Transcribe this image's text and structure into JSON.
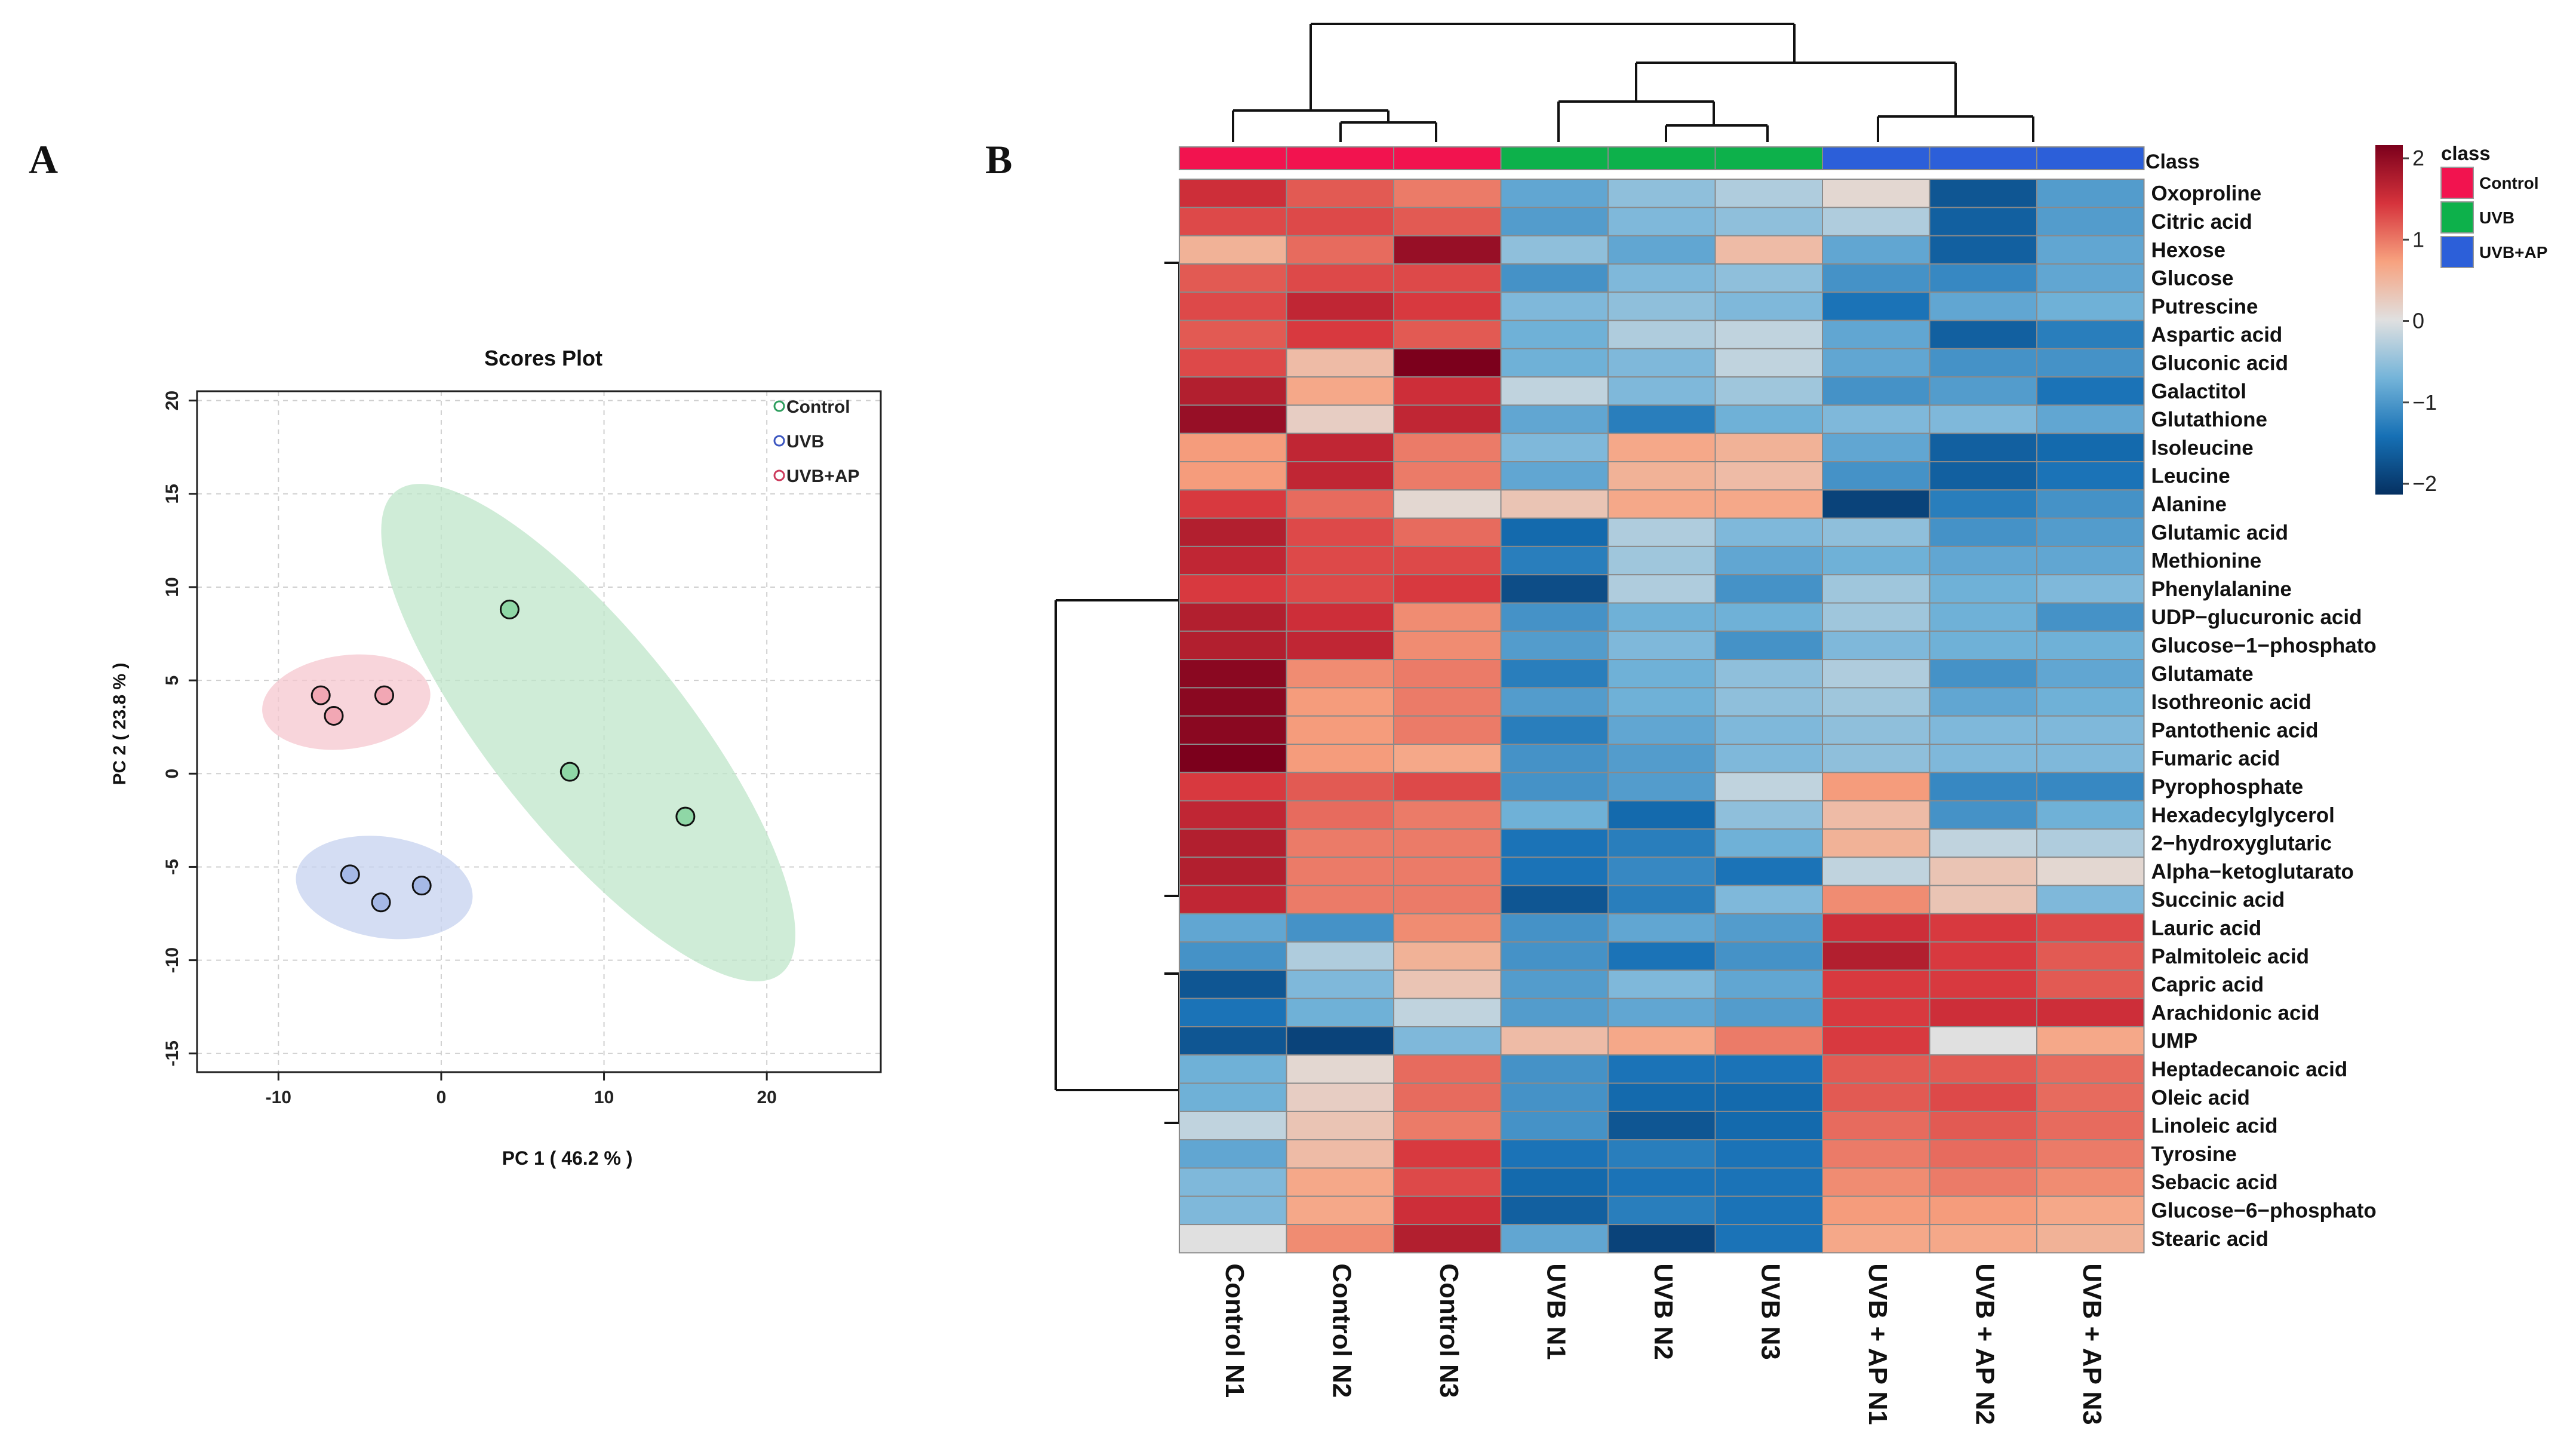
{
  "panels": {
    "a_label": "A",
    "b_label": "B"
  },
  "chart_data": [
    {
      "type": "scatter",
      "title": "Scores Plot",
      "xlabel": "PC 1 ( 46.2 % )",
      "ylabel": "PC 2 ( 23.8 % )",
      "xlim": [
        -15,
        27
      ],
      "ylim": [
        -16,
        20.5
      ],
      "xticks": [
        -10,
        0,
        10,
        20
      ],
      "yticks": [
        -15,
        -10,
        -5,
        0,
        5,
        10,
        15,
        20
      ],
      "grid": true,
      "legend_position": "top-right",
      "series": [
        {
          "name": "Control",
          "color": "#2e9e5e",
          "fill": "#8fd7a6",
          "ellipse": "#bfe6c9",
          "points": [
            [
              4.2,
              8.8
            ],
            [
              7.9,
              0.1
            ],
            [
              15.0,
              -2.3
            ]
          ]
        },
        {
          "name": "UVB",
          "color": "#3c56c0",
          "fill": "#a5b8e6",
          "ellipse": "#c6d1ef",
          "points": [
            [
              -5.6,
              -5.4
            ],
            [
              -3.7,
              -6.9
            ],
            [
              -1.2,
              -6.0
            ]
          ]
        },
        {
          "name": "UVB+AP",
          "color": "#cc3b5c",
          "fill": "#f2a7b4",
          "ellipse": "#f6c7cf",
          "points": [
            [
              -7.4,
              4.2
            ],
            [
              -6.6,
              3.1
            ],
            [
              -3.5,
              4.2
            ]
          ]
        }
      ]
    },
    {
      "type": "heatmap",
      "columns": [
        "Control N1",
        "Control N2",
        "Control N3",
        "UVB N1",
        "UVB N2",
        "UVB N3",
        "UVB + AP N1",
        "UVB + AP N2",
        "UVB + AP N3"
      ],
      "class_row_label": "Class",
      "column_class": [
        0,
        0,
        0,
        1,
        1,
        1,
        2,
        2,
        2
      ],
      "rows": [
        "Oxoproline",
        "Citric acid",
        "Hexose",
        "Glucose",
        "Putrescine",
        "Aspartic acid",
        "Gluconic acid",
        "Galactitol",
        "Glutathione",
        "Isoleucine",
        "Leucine",
        "Alanine",
        "Glutamic acid",
        "Methionine",
        "Phenylalanine",
        "UDP−glucuronic acid",
        "Glucose−1−phosphato",
        "Glutamate",
        "Isothreonic acid",
        "Pantothenic acid",
        "Fumaric acid",
        "Pyrophosphate",
        "Hexadecylglycerol",
        "2−hydroxyglutaric",
        "Alpha−ketoglutarato",
        "Succinic acid",
        "Lauric acid",
        "Palmitoleic acid",
        "Capric acid",
        "Arachidonic acid",
        "UMP",
        "Heptadecanoic acid",
        "Oleic acid",
        "Linoleic acid",
        "Tyrosine",
        "Sebacic acid",
        "Glucose−6−phosphato",
        "Stearic acid"
      ],
      "values": [
        [
          1.4,
          1.1,
          0.9,
          -0.8,
          -0.5,
          -0.3,
          0.1,
          -1.6,
          -0.9
        ],
        [
          1.2,
          1.2,
          1.1,
          -0.9,
          -0.6,
          -0.5,
          -0.3,
          -1.5,
          -0.9
        ],
        [
          0.5,
          1.0,
          1.8,
          -0.5,
          -0.8,
          0.4,
          -0.8,
          -1.5,
          -0.8
        ],
        [
          1.1,
          1.2,
          1.2,
          -1.0,
          -0.6,
          -0.5,
          -1.0,
          -1.1,
          -0.8
        ],
        [
          1.2,
          1.5,
          1.3,
          -0.6,
          -0.5,
          -0.6,
          -1.3,
          -0.8,
          -0.7
        ],
        [
          1.1,
          1.3,
          1.1,
          -0.7,
          -0.3,
          -0.2,
          -0.8,
          -1.5,
          -1.2
        ],
        [
          1.2,
          0.4,
          2.0,
          -0.7,
          -0.6,
          -0.2,
          -0.8,
          -1.0,
          -1.0
        ],
        [
          1.6,
          0.6,
          1.4,
          -0.2,
          -0.6,
          -0.4,
          -1.0,
          -0.9,
          -1.3
        ],
        [
          1.8,
          0.2,
          1.5,
          -0.8,
          -1.2,
          -0.7,
          -0.6,
          -0.6,
          -0.8
        ],
        [
          0.7,
          1.5,
          0.9,
          -0.6,
          0.6,
          0.5,
          -0.8,
          -1.5,
          -1.4
        ],
        [
          0.7,
          1.5,
          0.9,
          -0.8,
          0.5,
          0.4,
          -1.0,
          -1.5,
          -1.3
        ],
        [
          1.3,
          1.0,
          0.1,
          0.3,
          0.6,
          0.6,
          -1.8,
          -1.2,
          -1.0
        ],
        [
          1.6,
          1.2,
          1.0,
          -1.4,
          -0.3,
          -0.6,
          -0.5,
          -1.0,
          -0.9
        ],
        [
          1.5,
          1.2,
          1.2,
          -1.2,
          -0.4,
          -0.8,
          -0.7,
          -0.8,
          -0.8
        ],
        [
          1.3,
          1.2,
          1.3,
          -1.7,
          -0.3,
          -1.0,
          -0.4,
          -0.7,
          -0.6
        ],
        [
          1.6,
          1.4,
          0.8,
          -1.0,
          -0.7,
          -0.7,
          -0.4,
          -0.7,
          -1.0
        ],
        [
          1.6,
          1.5,
          0.8,
          -0.9,
          -0.6,
          -1.0,
          -0.6,
          -0.7,
          -0.7
        ],
        [
          1.9,
          0.8,
          0.9,
          -1.2,
          -0.7,
          -0.5,
          -0.3,
          -1.0,
          -0.8
        ],
        [
          1.9,
          0.7,
          0.9,
          -0.9,
          -0.7,
          -0.5,
          -0.4,
          -0.8,
          -0.7
        ],
        [
          1.9,
          0.7,
          0.9,
          -1.2,
          -0.8,
          -0.6,
          -0.5,
          -0.6,
          -0.6
        ],
        [
          2.0,
          0.7,
          0.6,
          -1.0,
          -0.9,
          -0.6,
          -0.5,
          -0.6,
          -0.6
        ],
        [
          1.3,
          1.1,
          1.2,
          -1.0,
          -0.9,
          -0.2,
          0.7,
          -1.1,
          -1.1
        ],
        [
          1.5,
          1.0,
          0.9,
          -0.7,
          -1.4,
          -0.5,
          0.4,
          -1.0,
          -0.7
        ],
        [
          1.6,
          0.9,
          0.9,
          -1.3,
          -1.2,
          -0.7,
          0.5,
          -0.2,
          -0.3
        ],
        [
          1.6,
          0.9,
          0.9,
          -1.3,
          -1.1,
          -1.3,
          -0.2,
          0.3,
          0.1
        ],
        [
          1.5,
          0.9,
          0.9,
          -1.6,
          -1.2,
          -0.6,
          0.8,
          0.3,
          -0.6
        ],
        [
          -0.8,
          -1.0,
          0.8,
          -1.0,
          -0.8,
          -0.9,
          1.4,
          1.3,
          1.2
        ],
        [
          -1.0,
          -0.3,
          0.5,
          -1.0,
          -1.3,
          -1.0,
          1.6,
          1.3,
          1.1
        ],
        [
          -1.6,
          -0.6,
          0.3,
          -0.9,
          -0.6,
          -0.8,
          1.3,
          1.3,
          1.1
        ],
        [
          -1.3,
          -0.7,
          -0.2,
          -0.9,
          -0.8,
          -0.9,
          1.3,
          1.4,
          1.4
        ],
        [
          -1.6,
          -1.8,
          -0.6,
          0.4,
          0.6,
          0.9,
          1.3,
          0.0,
          0.6
        ],
        [
          -0.7,
          0.1,
          1.0,
          -1.0,
          -1.3,
          -1.3,
          1.1,
          1.1,
          1.0
        ],
        [
          -0.7,
          0.2,
          1.0,
          -1.0,
          -1.4,
          -1.4,
          1.1,
          1.2,
          1.0
        ],
        [
          -0.2,
          0.3,
          0.9,
          -1.0,
          -1.6,
          -1.4,
          1.0,
          1.1,
          1.0
        ],
        [
          -0.8,
          0.4,
          1.3,
          -1.3,
          -1.2,
          -1.3,
          0.9,
          1.0,
          0.9
        ],
        [
          -0.6,
          0.6,
          1.2,
          -1.4,
          -1.3,
          -1.3,
          0.8,
          0.9,
          0.8
        ],
        [
          -0.6,
          0.6,
          1.4,
          -1.5,
          -1.2,
          -1.3,
          0.7,
          0.7,
          0.6
        ],
        [
          0.0,
          0.8,
          1.6,
          -0.8,
          -1.8,
          -1.3,
          0.6,
          0.6,
          0.5
        ]
      ],
      "colorbar": {
        "min": -2,
        "max": 2,
        "ticks": [
          2,
          1,
          0,
          -1,
          -2
        ],
        "tick_labels": [
          "2",
          "1",
          "0",
          "−1",
          "−2"
        ],
        "stops": [
          "#053061",
          "#1670b5",
          "#74b4d9",
          "#e0e0e0",
          "#f7a27f",
          "#d6333c",
          "#7c001c"
        ]
      },
      "class_legend": {
        "title": "class",
        "entries": [
          "Control",
          "UVB",
          "UVB+AP"
        ],
        "colors": [
          "#f2134f",
          "#0db14b",
          "#2c5fd9"
        ]
      }
    }
  ]
}
